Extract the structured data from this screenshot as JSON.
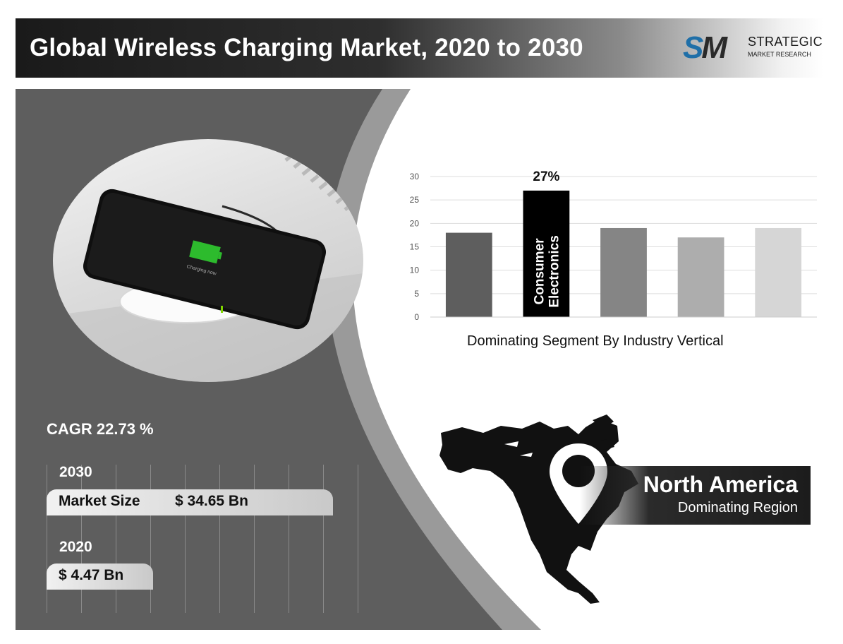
{
  "header": {
    "title": "Global Wireless Charging Market, 2020 to 2030"
  },
  "logo": {
    "mark": "SM",
    "line1": "STRATEGIC",
    "line2": "MARKET RESEARCH",
    "colors": {
      "blue": "#1f6fa8",
      "dark": "#2a2a2a"
    }
  },
  "stats": {
    "cagr": "CAGR 22.73 %",
    "year_2030": "2030",
    "market_size_label": "Market Size",
    "value_2030": "$ 34.65 Bn",
    "year_2020": "2020",
    "value_2020": "$ 4.47 Bn"
  },
  "region": {
    "name": "North America",
    "label": "Dominating Region"
  },
  "phone_screen_text": "Charging now",
  "chart_data": {
    "type": "bar",
    "title": "",
    "xlabel": "Dominating Segment By Industry Vertical",
    "ylabel": "",
    "ylim": [
      0,
      30
    ],
    "yticks": [
      "0",
      "5",
      "10",
      "15",
      "20",
      "25",
      "30"
    ],
    "grid": true,
    "values": [
      18,
      27,
      19,
      17,
      19
    ],
    "bar_colors": [
      "#5e5e5e",
      "#000000",
      "#858585",
      "#adadad",
      "#d6d6d6"
    ],
    "highlight": {
      "index": 1,
      "label": "Consumer Electronics",
      "label_lines": [
        "Consumer",
        "Electronics"
      ],
      "value_label": "27%"
    }
  }
}
